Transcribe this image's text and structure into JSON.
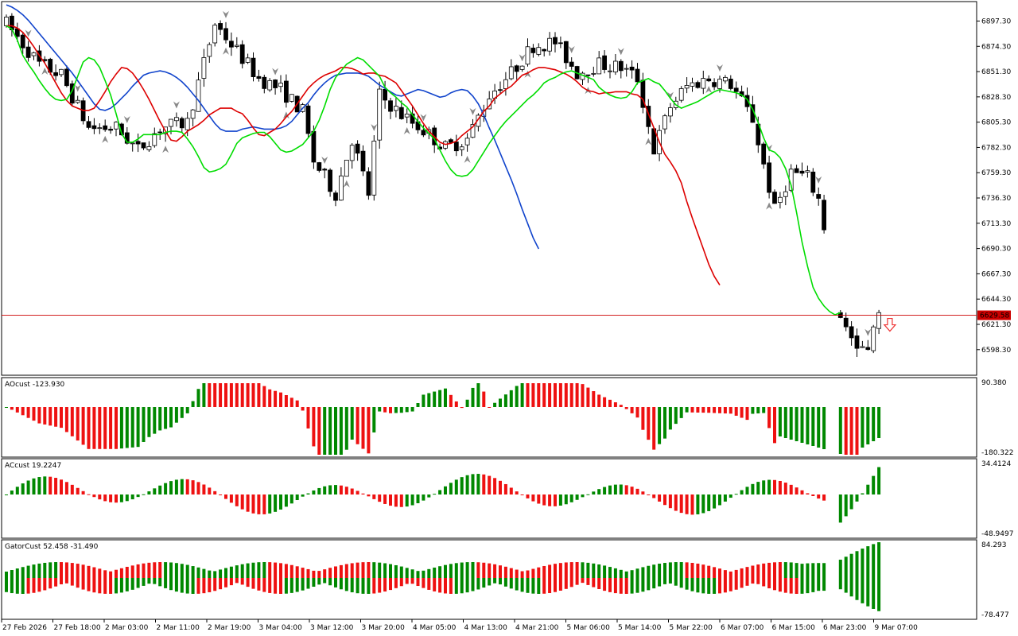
{
  "colors": {
    "background": "#ffffff",
    "axis": "#000000",
    "bull_candle": "#ffffff",
    "bear_candle": "#000000",
    "alligator_lips": "#00dd00",
    "alligator_teeth": "#dd0000",
    "alligator_jaw": "#1144cc",
    "histogram_up": "#008800",
    "histogram_down": "#ee1111",
    "fractal": "#888888",
    "price_line": "#cc0000",
    "price_tag_bg": "#cc0000",
    "price_tag_text": "#ffffff",
    "signal_arrow": "#ee3333"
  },
  "chart_data": [
    {
      "type": "candlestick",
      "panel": "main",
      "symbol": "",
      "ylim": [
        6575,
        6915
      ],
      "y_ticks": [
        "6897.30",
        "6874.30",
        "6851.30",
        "6828.30",
        "6805.30",
        "6782.30",
        "6759.30",
        "6736.30",
        "6713.30",
        "6690.30",
        "6667.30",
        "6644.30",
        "6621.30",
        "6598.30"
      ],
      "current_price": "6629.58",
      "x_labels": [
        "27 Feb 2026",
        "27 Feb 18:00",
        "2 Mar 03:00",
        "2 Mar 11:00",
        "2 Mar 19:00",
        "3 Mar 04:00",
        "3 Mar 12:00",
        "3 Mar 20:00",
        "4 Mar 05:00",
        "4 Mar 13:00",
        "4 Mar 21:00",
        "5 Mar 06:00",
        "5 Mar 14:00",
        "5 Mar 22:00",
        "6 Mar 07:00",
        "6 Mar 15:00",
        "6 Mar 23:00",
        "9 Mar 07:00"
      ],
      "candle_count": 160,
      "indicators": {
        "alligator_lips_close": [
          6893,
          6890,
          6880,
          6866,
          6858,
          6851,
          6843,
          6836,
          6830,
          6826,
          6825,
          6826,
          6834,
          6847,
          6860,
          6864,
          6862,
          6855,
          6843,
          6830,
          6813,
          6795,
          6787,
          6787,
          6790,
          6794,
          6794,
          6794,
          6794,
          6796,
          6797,
          6797,
          6796,
          6790,
          6783,
          6774,
          6764,
          6760,
          6761,
          6763,
          6767,
          6776,
          6786,
          6791,
          6793,
          6795,
          6796,
          6796,
          6792,
          6786,
          6780,
          6778,
          6779,
          6782,
          6785,
          6791,
          6797,
          6807,
          6820,
          6835,
          6846,
          6852,
          6858,
          6861,
          6864,
          6862,
          6857,
          6852,
          6847,
          6837,
          6832,
          6828,
          6823,
          6819,
          6812,
          6806,
          6800,
          6795,
          6790,
          6780,
          6770,
          6762,
          6757,
          6756,
          6757,
          6762,
          6770,
          6778,
          6786,
          6793,
          6800,
          6806,
          6811,
          6816,
          6821,
          6826,
          6830,
          6835,
          6841,
          6844,
          6846,
          6849,
          6851,
          6852,
          6850,
          6848,
          6846,
          6844,
          6837,
          6833,
          6830,
          6828,
          6827,
          6828,
          6833,
          6841,
          6843,
          6845,
          6842,
          6840,
          6834,
          6827,
          6821,
          6818,
          6820,
          6822,
          6824,
          6827,
          6830,
          6833,
          6835,
          6834,
          6833,
          6832,
          6830,
          6826,
          6817,
          6805,
          6791,
          6780,
          6778,
          6773,
          6763,
          6748,
          6723,
          6696,
          6674,
          6655,
          6645,
          6638,
          6633,
          6630,
          6632
        ],
        "alligator_teeth_close": [
          6893,
          6893,
          6891,
          6887,
          6881,
          6874,
          6866,
          6859,
          6850,
          6841,
          6832,
          6825,
          6820,
          6818,
          6816,
          6816,
          6818,
          6825,
          6833,
          6842,
          6849,
          6855,
          6854,
          6850,
          6843,
          6835,
          6826,
          6816,
          6806,
          6797,
          6789,
          6788,
          6792,
          6797,
          6800,
          6803,
          6807,
          6812,
          6815,
          6818,
          6818,
          6818,
          6815,
          6813,
          6807,
          6800,
          6794,
          6793,
          6796,
          6799,
          6804,
          6810,
          6815,
          6822,
          6829,
          6836,
          6841,
          6845,
          6848,
          6850,
          6852,
          6855,
          6855,
          6854,
          6852,
          6849,
          6850,
          6850,
          6848,
          6847,
          6844,
          6841,
          6834,
          6827,
          6820,
          6812,
          6804,
          6797,
          6792,
          6787,
          6785,
          6786,
          6788,
          6793,
          6797,
          6801,
          6808,
          6815,
          6820,
          6827,
          6831,
          6835,
          6838,
          6843,
          6848,
          6850,
          6853,
          6855,
          6855,
          6854,
          6853,
          6851,
          6849,
          6846,
          6842,
          6837,
          6834,
          6833,
          6831,
          6832,
          6832,
          6833,
          6833,
          6833,
          6831,
          6830,
          6826,
          6813,
          6800,
          6787,
          6776,
          6769,
          6761,
          6750,
          6733,
          6718,
          6704,
          6690,
          6676,
          6665,
          6657
        ],
        "alligator_jaw_close": [
          6912,
          6910,
          6907,
          6903,
          6898,
          6892,
          6886,
          6880,
          6874,
          6868,
          6862,
          6856,
          6850,
          6843,
          6836,
          6829,
          6822,
          6817,
          6816,
          6818,
          6822,
          6827,
          6832,
          6838,
          6843,
          6848,
          6850,
          6851,
          6852,
          6851,
          6849,
          6846,
          6842,
          6837,
          6831,
          6825,
          6818,
          6811,
          6804,
          6799,
          6797,
          6797,
          6797,
          6799,
          6800,
          6801,
          6800,
          6799,
          6799,
          6799,
          6800,
          6802,
          6806,
          6812,
          6818,
          6823,
          6830,
          6836,
          6841,
          6845,
          6848,
          6849,
          6850,
          6850,
          6850,
          6849,
          6847,
          6843,
          6839,
          6836,
          6833,
          6830,
          6829,
          6831,
          6833,
          6835,
          6834,
          6832,
          6830,
          6828,
          6829,
          6832,
          6834,
          6835,
          6834,
          6829,
          6822,
          6812,
          6800,
          6789,
          6777,
          6765,
          6753,
          6740,
          6726,
          6713,
          6700,
          6690
        ]
      }
    },
    {
      "type": "bar",
      "panel": "AOcust",
      "label": "AOcust -123.930",
      "ylim": [
        -180.322,
        90.38
      ],
      "y_ticks": [
        "90.380",
        "-180.322"
      ]
    },
    {
      "type": "bar",
      "panel": "ACcust",
      "label": "ACcust 19.2247",
      "ylim": [
        -48.9497,
        34.4124
      ],
      "y_ticks": [
        "34.4124",
        "-48.9497"
      ]
    },
    {
      "type": "bar",
      "panel": "GatorCust",
      "label": "GatorCust 52.458 -31.490",
      "ylim": [
        -78.477,
        84.293
      ],
      "y_ticks": [
        "84.293",
        "-78.477"
      ]
    }
  ]
}
